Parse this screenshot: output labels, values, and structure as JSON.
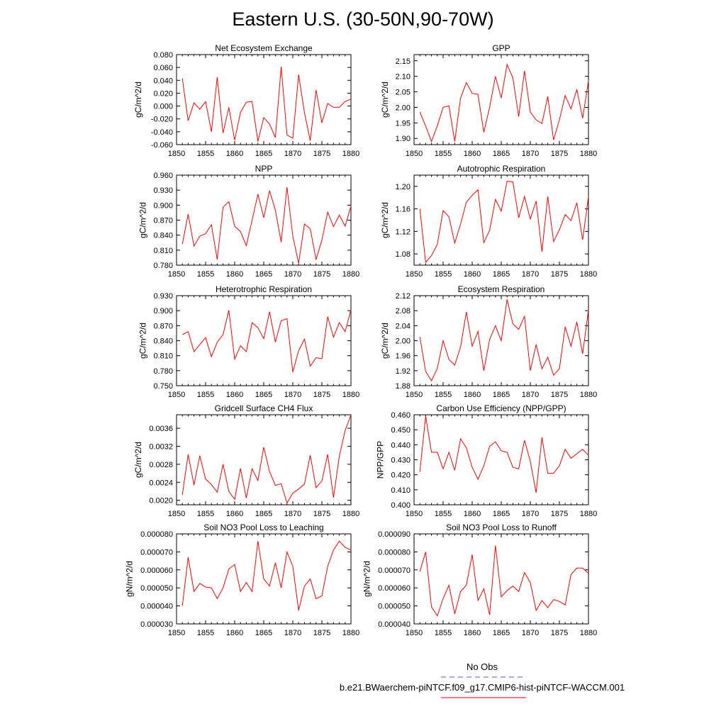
{
  "page_title": "Eastern U.S. (30-50N,90-70W)",
  "legend": {
    "items": [
      {
        "label": "No Obs",
        "color": "#5555cc",
        "style": "dashed"
      },
      {
        "label": "b.e21.BWaerchem-piNTCF.f09_g17.CMIP6-hist-piNTCF-WACCM.001",
        "color": "#ee0000",
        "style": "solid"
      }
    ]
  },
  "chart_data": [
    {
      "type": "line",
      "title": "Net Ecosystem Exchange",
      "ylabel": "gC/m^2/d",
      "xlim": [
        1850,
        1880
      ],
      "ylim": [
        -0.06,
        0.08
      ],
      "xticks": [
        "1850",
        "1855",
        "1860",
        "1865",
        "1870",
        "1875",
        "1880"
      ],
      "yticks": [
        "-0.060",
        "-0.040",
        "-0.020",
        "0.000",
        "0.020",
        "0.040",
        "0.060",
        "0.080"
      ],
      "color": "#ff0000",
      "x": [
        1851,
        1852,
        1853,
        1854,
        1855,
        1856,
        1857,
        1858,
        1859,
        1860,
        1861,
        1862,
        1863,
        1864,
        1865,
        1866,
        1867,
        1868,
        1869,
        1870,
        1871,
        1872,
        1873,
        1874,
        1875,
        1876,
        1877,
        1878,
        1879,
        1880
      ],
      "y": [
        0.043,
        -0.023,
        0.005,
        -0.005,
        0.007,
        -0.04,
        0.045,
        -0.042,
        -0.002,
        -0.053,
        -0.01,
        0.006,
        0.007,
        -0.055,
        -0.018,
        -0.028,
        -0.049,
        0.061,
        -0.045,
        -0.05,
        0.049,
        -0.01,
        -0.054,
        0.025,
        -0.026,
        0.004,
        -0.002,
        -0.002,
        0.007,
        0.011
      ]
    },
    {
      "type": "line",
      "title": "GPP",
      "ylabel": "gC/m^2/d",
      "xlim": [
        1850,
        1880
      ],
      "ylim": [
        1.88,
        2.17
      ],
      "xticks": [
        "1850",
        "1855",
        "1860",
        "1865",
        "1870",
        "1875",
        "1880"
      ],
      "yticks": [
        "1.90",
        "1.95",
        "2.00",
        "2.05",
        "2.10",
        "2.15"
      ],
      "color": "#ff0000",
      "x": [
        1851,
        1852,
        1853,
        1854,
        1855,
        1856,
        1857,
        1858,
        1859,
        1860,
        1861,
        1862,
        1863,
        1864,
        1865,
        1866,
        1867,
        1868,
        1869,
        1870,
        1871,
        1872,
        1873,
        1874,
        1875,
        1876,
        1877,
        1878,
        1879,
        1880
      ],
      "y": [
        1.985,
        1.94,
        1.89,
        1.94,
        2.0,
        2.005,
        1.89,
        2.03,
        2.08,
        2.045,
        2.042,
        1.92,
        2.0,
        2.1,
        2.03,
        2.138,
        2.095,
        1.97,
        2.118,
        1.985,
        1.96,
        1.948,
        2.035,
        1.895,
        1.96,
        2.038,
        1.995,
        2.058,
        1.965,
        2.085
      ]
    },
    {
      "type": "line",
      "title": "NPP",
      "ylabel": "gC/m^2/d",
      "xlim": [
        1850,
        1880
      ],
      "ylim": [
        0.78,
        0.96
      ],
      "xticks": [
        "1850",
        "1855",
        "1860",
        "1865",
        "1870",
        "1875",
        "1880"
      ],
      "yticks": [
        "0.780",
        "0.810",
        "0.840",
        "0.870",
        "0.900",
        "0.930",
        "0.960"
      ],
      "color": "#ff0000",
      "x": [
        1851,
        1852,
        1853,
        1854,
        1855,
        1856,
        1857,
        1858,
        1859,
        1860,
        1861,
        1862,
        1863,
        1864,
        1865,
        1866,
        1867,
        1868,
        1869,
        1870,
        1871,
        1872,
        1873,
        1874,
        1875,
        1876,
        1877,
        1878,
        1879,
        1880
      ],
      "y": [
        0.822,
        0.882,
        0.818,
        0.838,
        0.843,
        0.861,
        0.791,
        0.896,
        0.907,
        0.858,
        0.847,
        0.819,
        0.87,
        0.922,
        0.875,
        0.929,
        0.89,
        0.826,
        0.936,
        0.838,
        0.784,
        0.862,
        0.853,
        0.791,
        0.83,
        0.886,
        0.857,
        0.88,
        0.858,
        0.898
      ]
    },
    {
      "type": "line",
      "title": "Autotrophic Respiration",
      "ylabel": "gC/m^2/d",
      "xlim": [
        1850,
        1880
      ],
      "ylim": [
        1.06,
        1.22
      ],
      "xticks": [
        "1850",
        "1855",
        "1860",
        "1865",
        "1870",
        "1875",
        "1880"
      ],
      "yticks": [
        "1.08",
        "1.12",
        "1.16",
        "1.20"
      ],
      "color": "#ff0000",
      "x": [
        1851,
        1852,
        1853,
        1854,
        1855,
        1856,
        1857,
        1858,
        1859,
        1860,
        1861,
        1862,
        1863,
        1864,
        1865,
        1866,
        1867,
        1868,
        1869,
        1870,
        1871,
        1872,
        1873,
        1874,
        1875,
        1876,
        1877,
        1878,
        1879,
        1880
      ],
      "y": [
        1.16,
        1.065,
        1.077,
        1.097,
        1.157,
        1.146,
        1.099,
        1.133,
        1.172,
        1.184,
        1.194,
        1.1,
        1.122,
        1.177,
        1.156,
        1.209,
        1.208,
        1.144,
        1.182,
        1.142,
        1.174,
        1.084,
        1.182,
        1.102,
        1.123,
        1.15,
        1.139,
        1.171,
        1.105,
        1.182
      ]
    },
    {
      "type": "line",
      "title": "Heterotrophic Respiration",
      "ylabel": "gC/m^2/d",
      "xlim": [
        1850,
        1880
      ],
      "ylim": [
        0.75,
        0.93
      ],
      "xticks": [
        "1850",
        "1855",
        "1860",
        "1865",
        "1870",
        "1875",
        "1880"
      ],
      "yticks": [
        "0.750",
        "0.780",
        "0.810",
        "0.840",
        "0.870",
        "0.900",
        "0.930"
      ],
      "color": "#ff0000",
      "x": [
        1851,
        1852,
        1853,
        1854,
        1855,
        1856,
        1857,
        1858,
        1859,
        1860,
        1861,
        1862,
        1863,
        1864,
        1865,
        1866,
        1867,
        1868,
        1869,
        1870,
        1871,
        1872,
        1873,
        1874,
        1875,
        1876,
        1877,
        1878,
        1879,
        1880
      ],
      "y": [
        0.852,
        0.858,
        0.818,
        0.832,
        0.846,
        0.808,
        0.837,
        0.852,
        0.901,
        0.803,
        0.83,
        0.818,
        0.876,
        0.866,
        0.844,
        0.898,
        0.837,
        0.88,
        0.884,
        0.777,
        0.82,
        0.843,
        0.789,
        0.806,
        0.804,
        0.888,
        0.847,
        0.876,
        0.858,
        0.902
      ]
    },
    {
      "type": "line",
      "title": "Ecosystem Respiration",
      "ylabel": "gC/m^2/d",
      "xlim": [
        1850,
        1880
      ],
      "ylim": [
        1.88,
        2.12
      ],
      "xticks": [
        "1850",
        "1855",
        "1860",
        "1865",
        "1870",
        "1875",
        "1880"
      ],
      "yticks": [
        "1.88",
        "1.92",
        "1.96",
        "2.00",
        "2.04",
        "2.08",
        "2.12"
      ],
      "color": "#ff0000",
      "x": [
        1851,
        1852,
        1853,
        1854,
        1855,
        1856,
        1857,
        1858,
        1859,
        1860,
        1861,
        1862,
        1863,
        1864,
        1865,
        1866,
        1867,
        1868,
        1869,
        1870,
        1871,
        1872,
        1873,
        1874,
        1875,
        1876,
        1877,
        1878,
        1879,
        1880
      ],
      "y": [
        2.01,
        1.918,
        1.893,
        1.926,
        2.0,
        1.95,
        1.935,
        1.983,
        2.077,
        1.985,
        2.025,
        1.92,
        2.003,
        2.04,
        2.0,
        2.11,
        2.045,
        2.03,
        2.065,
        1.92,
        1.99,
        1.925,
        1.956,
        1.908,
        1.925,
        2.037,
        1.985,
        2.05,
        1.965,
        2.082
      ]
    },
    {
      "type": "line",
      "title": "Gridcell Surface CH4 Flux",
      "ylabel": "gC/m^2/d",
      "xlim": [
        1850,
        1880
      ],
      "ylim": [
        0.0019,
        0.0039
      ],
      "xticks": [
        "1850",
        "1855",
        "1860",
        "1865",
        "1870",
        "1875",
        "1880"
      ],
      "yticks": [
        "0.0020",
        "0.0024",
        "0.0028",
        "0.0032",
        "0.0036"
      ],
      "color": "#ff0000",
      "x": [
        1851,
        1852,
        1853,
        1854,
        1855,
        1856,
        1857,
        1858,
        1859,
        1860,
        1861,
        1862,
        1863,
        1864,
        1865,
        1866,
        1867,
        1868,
        1869,
        1870,
        1871,
        1872,
        1873,
        1874,
        1875,
        1876,
        1877,
        1878,
        1879,
        1880
      ],
      "y": [
        0.00212,
        0.00302,
        0.00234,
        0.00299,
        0.00247,
        0.00235,
        0.00218,
        0.0028,
        0.0022,
        0.00202,
        0.00271,
        0.00205,
        0.0027,
        0.00244,
        0.00318,
        0.00264,
        0.00233,
        0.00237,
        0.00194,
        0.00216,
        0.00225,
        0.00236,
        0.003,
        0.00228,
        0.00243,
        0.00302,
        0.00206,
        0.00298,
        0.00355,
        0.0039
      ]
    },
    {
      "type": "line",
      "title": "Carbon Use Efficiency (NPP/GPP)",
      "ylabel": "NPP/GPP",
      "xlim": [
        1850,
        1880
      ],
      "ylim": [
        0.4,
        0.46
      ],
      "xticks": [
        "1850",
        "1855",
        "1860",
        "1865",
        "1870",
        "1875",
        "1880"
      ],
      "yticks": [
        "0.400",
        "0.410",
        "0.420",
        "0.430",
        "0.440",
        "0.450",
        "0.460"
      ],
      "color": "#ff0000",
      "x": [
        1851,
        1852,
        1853,
        1854,
        1855,
        1856,
        1857,
        1858,
        1859,
        1860,
        1861,
        1862,
        1863,
        1864,
        1865,
        1866,
        1867,
        1868,
        1869,
        1870,
        1871,
        1872,
        1873,
        1874,
        1875,
        1876,
        1877,
        1878,
        1879,
        1880
      ],
      "y": [
        0.422,
        0.459,
        0.435,
        0.435,
        0.424,
        0.435,
        0.423,
        0.444,
        0.438,
        0.425,
        0.417,
        0.426,
        0.439,
        0.442,
        0.436,
        0.435,
        0.425,
        0.424,
        0.443,
        0.429,
        0.408,
        0.445,
        0.421,
        0.421,
        0.426,
        0.437,
        0.431,
        0.434,
        0.437,
        0.433
      ]
    },
    {
      "type": "line",
      "title": "Soil NO3 Pool Loss to Leaching",
      "ylabel": "gN/m^2/d",
      "xlim": [
        1850,
        1880
      ],
      "ylim": [
        3e-05,
        8e-05
      ],
      "xticks": [
        "1850",
        "1855",
        "1860",
        "1865",
        "1870",
        "1875",
        "1880"
      ],
      "yticks": [
        "0.000030",
        "0.000040",
        "0.000050",
        "0.000060",
        "0.000070",
        "0.000080"
      ],
      "color": "#ff0000",
      "x": [
        1851,
        1852,
        1853,
        1854,
        1855,
        1856,
        1857,
        1858,
        1859,
        1860,
        1861,
        1862,
        1863,
        1864,
        1865,
        1866,
        1867,
        1868,
        1869,
        1870,
        1871,
        1872,
        1873,
        1874,
        1875,
        1876,
        1877,
        1878,
        1879,
        1880
      ],
      "y": [
        4e-05,
        6.7e-05,
        4.8e-05,
        5.25e-05,
        5.05e-05,
        5e-05,
        4.4e-05,
        5e-05,
        6.05e-05,
        6.3e-05,
        4.8e-05,
        5.3e-05,
        4.8e-05,
        7.6e-05,
        5.5e-05,
        5.1e-05,
        6.4e-05,
        5e-05,
        7e-05,
        6.2e-05,
        3.75e-05,
        5.1e-05,
        5.5e-05,
        4.4e-05,
        4.55e-05,
        6.2e-05,
        7.1e-05,
        7.6e-05,
        7.25e-05,
        7.1e-05
      ]
    },
    {
      "type": "line",
      "title": "Soil NO3 Pool Loss to Runoff",
      "ylabel": "gN/m^2/d",
      "xlim": [
        1850,
        1880
      ],
      "ylim": [
        4e-05,
        9e-05
      ],
      "xticks": [
        "1850",
        "1855",
        "1860",
        "1865",
        "1870",
        "1875",
        "1880"
      ],
      "yticks": [
        "0.000040",
        "0.000050",
        "0.000060",
        "0.000070",
        "0.000080",
        "0.000090"
      ],
      "color": "#ff0000",
      "x": [
        1851,
        1852,
        1853,
        1854,
        1855,
        1856,
        1857,
        1858,
        1859,
        1860,
        1861,
        1862,
        1863,
        1864,
        1865,
        1866,
        1867,
        1868,
        1869,
        1870,
        1871,
        1872,
        1873,
        1874,
        1875,
        1876,
        1877,
        1878,
        1879,
        1880
      ],
      "y": [
        6.9e-05,
        8e-05,
        4.95e-05,
        4.45e-05,
        5.4e-05,
        6.15e-05,
        4.55e-05,
        5.8e-05,
        6.15e-05,
        7.85e-05,
        5.3e-05,
        5.95e-05,
        4.5e-05,
        8.35e-05,
        5.5e-05,
        5.85e-05,
        6.1e-05,
        5.8e-05,
        6.85e-05,
        6.3e-05,
        4.75e-05,
        5.3e-05,
        4.9e-05,
        5.35e-05,
        5.25e-05,
        5.05e-05,
        6.75e-05,
        7.1e-05,
        7.1e-05,
        6.8e-05
      ]
    }
  ]
}
